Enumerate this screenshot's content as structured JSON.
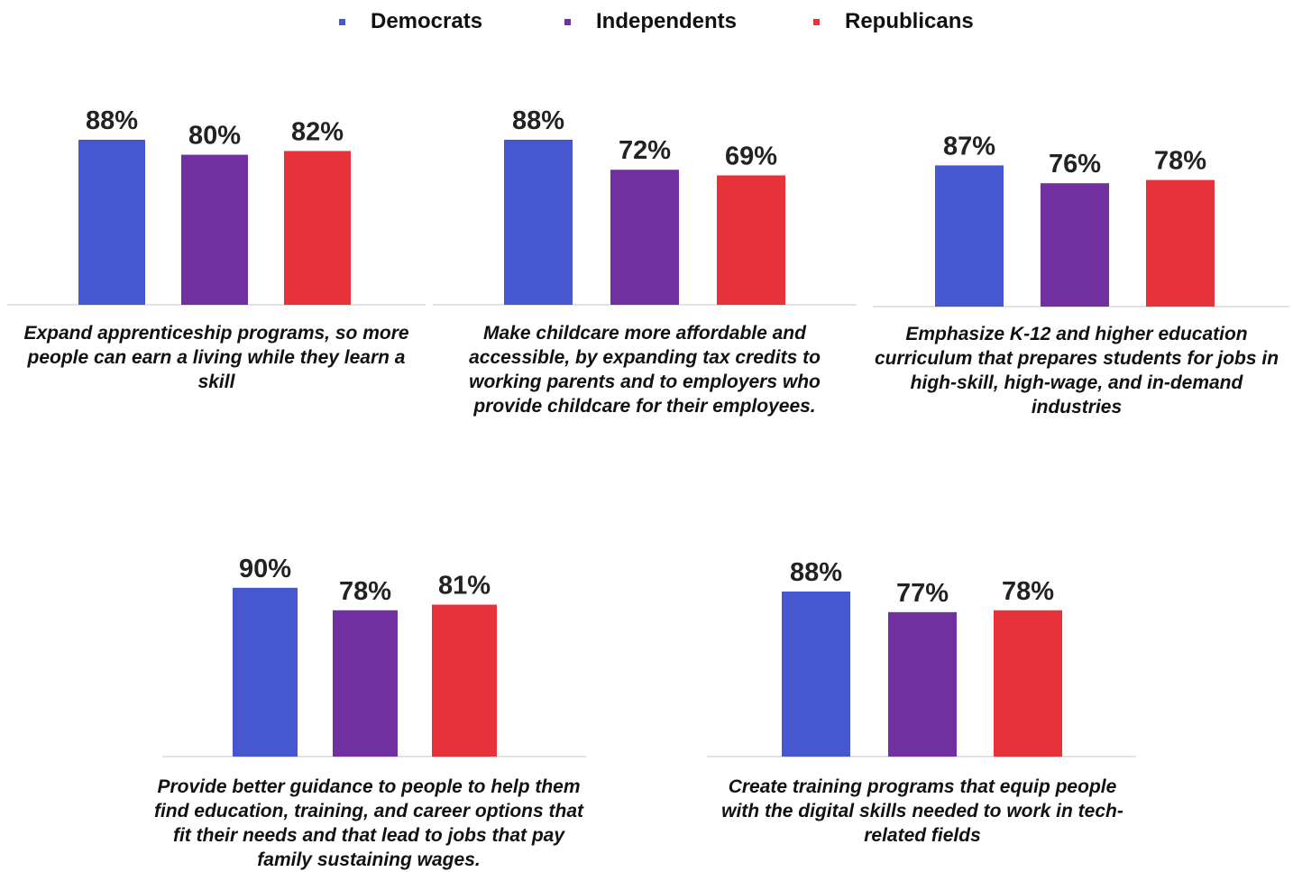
{
  "legend": [
    {
      "name": "Democrats",
      "color": "#4657D0"
    },
    {
      "name": "Independents",
      "color": "#7030A0"
    },
    {
      "name": "Republicans",
      "color": "#E8323A"
    }
  ],
  "chart_data": [
    {
      "type": "bar",
      "categories": [
        "Democrats",
        "Independents",
        "Republicans"
      ],
      "values": [
        88,
        80,
        82
      ],
      "labels": [
        "88%",
        "80%",
        "82%"
      ],
      "caption": "Expand apprenticeship programs, so more people can earn a living while they learn a skill",
      "ylim": [
        0,
        100
      ]
    },
    {
      "type": "bar",
      "categories": [
        "Democrats",
        "Independents",
        "Republicans"
      ],
      "values": [
        88,
        72,
        69
      ],
      "labels": [
        "88%",
        "72%",
        "69%"
      ],
      "caption": "Make childcare more affordable and accessible, by expanding tax credits to working parents and to employers who provide childcare for their employees.",
      "ylim": [
        0,
        100
      ]
    },
    {
      "type": "bar",
      "categories": [
        "Democrats",
        "Independents",
        "Republicans"
      ],
      "values": [
        87,
        76,
        78
      ],
      "labels": [
        "87%",
        "76%",
        "78%"
      ],
      "caption": "Emphasize K-12 and higher education curriculum that prepares students for jobs in high-skill, high-wage, and in-demand industries",
      "ylim": [
        0,
        100
      ]
    },
    {
      "type": "bar",
      "categories": [
        "Democrats",
        "Independents",
        "Republicans"
      ],
      "values": [
        90,
        78,
        81
      ],
      "labels": [
        "90%",
        "78%",
        "81%"
      ],
      "caption": "Provide better guidance to people to help them find education, training, and career options that fit their needs and that lead to jobs that pay family sustaining wages.",
      "ylim": [
        0,
        100
      ]
    },
    {
      "type": "bar",
      "categories": [
        "Democrats",
        "Independents",
        "Republicans"
      ],
      "values": [
        88,
        77,
        78
      ],
      "labels": [
        "88%",
        "77%",
        "78%"
      ],
      "caption": "Create training programs that equip people with the digital skills needed to work in tech-related fields",
      "ylim": [
        0,
        100
      ]
    }
  ]
}
